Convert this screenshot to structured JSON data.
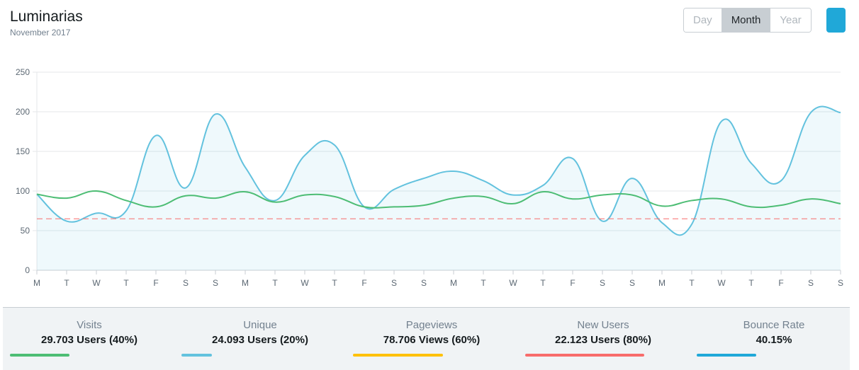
{
  "header": {
    "title": "Luminarias",
    "subtitle": "November 2017"
  },
  "toolbar": {
    "options": [
      "Day",
      "Month",
      "Year"
    ],
    "selected": "Month"
  },
  "colors": {
    "visits": "#4dbd74",
    "unique": "#63c2de",
    "pageviews": "#ffc107",
    "new_users": "#f86c6b",
    "bounce": "#20a8d8",
    "area_fill": "rgba(99,194,222,0.1)",
    "threshold": "#f86c6b"
  },
  "metrics": [
    {
      "label": "Visits",
      "value": "29.703 Users (40%)",
      "color": "#4dbd74",
      "fill": 0.35
    },
    {
      "label": "Unique",
      "value": "24.093 Users (20%)",
      "color": "#63c2de",
      "fill": 0.18
    },
    {
      "label": "Pageviews",
      "value": "78.706 Views (60%)",
      "color": "#ffc107",
      "fill": 0.53
    },
    {
      "label": "New Users",
      "value": "22.123 Users (80%)",
      "color": "#f86c6b",
      "fill": 0.7
    },
    {
      "label": "Bounce Rate",
      "value": "40.15%",
      "color": "#20a8d8",
      "fill": 0.35
    }
  ],
  "chart_data": {
    "type": "line",
    "x": [
      "M",
      "T",
      "W",
      "T",
      "F",
      "S",
      "S",
      "M",
      "T",
      "W",
      "T",
      "F",
      "S",
      "S",
      "M",
      "T",
      "W",
      "T",
      "F",
      "S",
      "S",
      "M",
      "T",
      "W",
      "T",
      "F",
      "S",
      "S"
    ],
    "ylim": [
      0,
      250
    ],
    "yticks": [
      0,
      50,
      100,
      150,
      200,
      250
    ],
    "grid": true,
    "series": [
      {
        "color": "#63c2de",
        "filled": true,
        "values": [
          96,
          62,
          72,
          75,
          170,
          104,
          197,
          130,
          88,
          145,
          158,
          80,
          102,
          116,
          125,
          113,
          95,
          107,
          141,
          62,
          116,
          60,
          58,
          188,
          135,
          113,
          199,
          199
        ]
      },
      {
        "color": "#4dbd74",
        "filled": false,
        "values": [
          96,
          91,
          100,
          88,
          80,
          94,
          91,
          99,
          86,
          95,
          93,
          80,
          80,
          82,
          91,
          93,
          84,
          99,
          90,
          95,
          95,
          81,
          88,
          90,
          80,
          82,
          90,
          84
        ]
      },
      {
        "color": "#f86c6b",
        "dashed": true,
        "values": [
          65,
          65,
          65,
          65,
          65,
          65,
          65,
          65,
          65,
          65,
          65,
          65,
          65,
          65,
          65,
          65,
          65,
          65,
          65,
          65,
          65,
          65,
          65,
          65,
          65,
          65,
          65,
          65
        ]
      }
    ]
  }
}
